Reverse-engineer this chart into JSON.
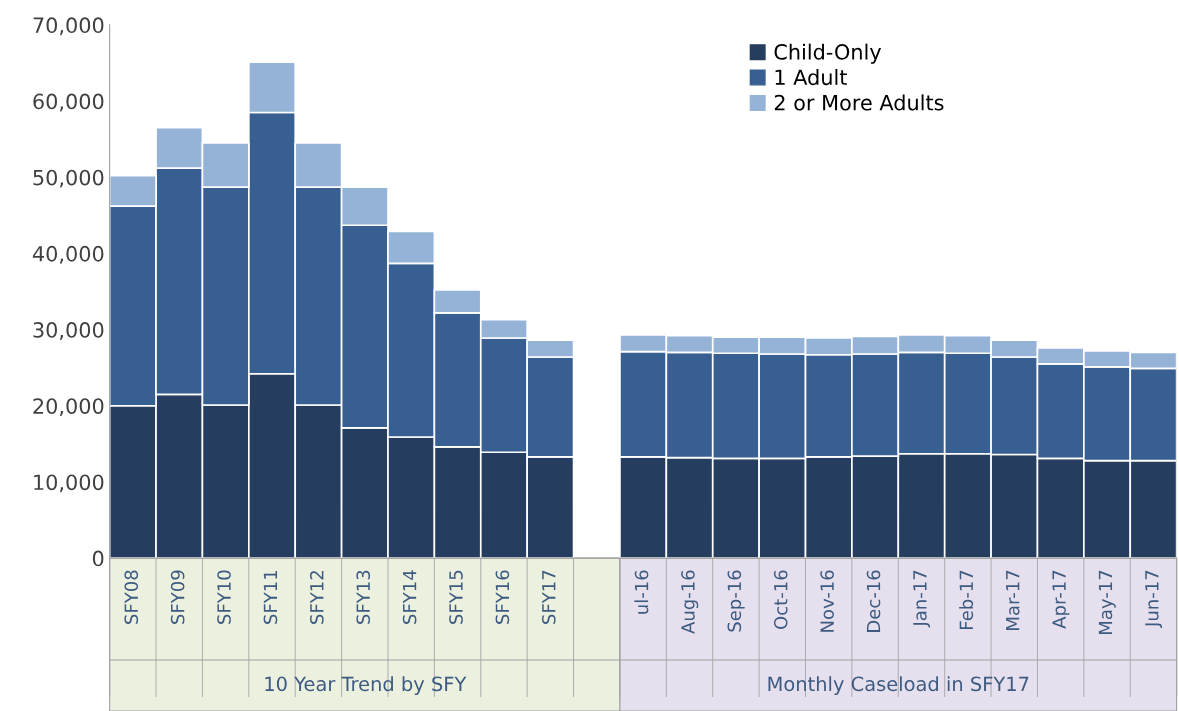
{
  "chart_data": {
    "type": "bar",
    "stacked": true,
    "categories": [
      "SFY08",
      "SFY09",
      "SFY10",
      "SFY11",
      "SFY12",
      "SFY13",
      "SFY14",
      "SFY15",
      "SFY16",
      "SFY17",
      null,
      "ul-16",
      "Aug-16",
      "Sep-16",
      "Oct-16",
      "Nov-16",
      "Dec-16",
      "Jan-17",
      "Feb-17",
      "Mar-17",
      "Apr-17",
      "May-17",
      "Jun-17"
    ],
    "series": [
      {
        "name": "Child-Only",
        "color": "#253d5e",
        "values": [
          20000,
          21500,
          20100,
          24200,
          20100,
          17100,
          15900,
          14600,
          13900,
          13300,
          null,
          13300,
          13200,
          13100,
          13100,
          13300,
          13400,
          13700,
          13700,
          13600,
          13100,
          12800,
          12800
        ]
      },
      {
        "name": "1 Adult",
        "color": "#375f91",
        "values": [
          26200,
          29700,
          28600,
          34300,
          28600,
          26600,
          22800,
          17600,
          15000,
          13100,
          null,
          13800,
          13800,
          13800,
          13700,
          13400,
          13400,
          13300,
          13200,
          12800,
          12400,
          12300,
          12100
        ]
      },
      {
        "name": "2 or More Adults",
        "color": "#95b3d7",
        "values": [
          4000,
          5300,
          5800,
          6600,
          5800,
          5000,
          4200,
          3000,
          2400,
          2200,
          null,
          2200,
          2200,
          2100,
          2200,
          2200,
          2300,
          2300,
          2300,
          2200,
          2100,
          2100,
          2100
        ]
      }
    ],
    "ylim": [
      0,
      70000
    ],
    "yticks": [
      {
        "value": 0,
        "label": "0"
      },
      {
        "value": 10000,
        "label": "10,000"
      },
      {
        "value": 20000,
        "label": "20,000"
      },
      {
        "value": 30000,
        "label": "30,000"
      },
      {
        "value": 40000,
        "label": "40,000"
      },
      {
        "value": 50000,
        "label": "50,000"
      },
      {
        "value": 60000,
        "label": "60,000"
      },
      {
        "value": 70000,
        "label": "70,000"
      }
    ],
    "legend": "top right",
    "annotations": [
      "10 Year Trend by SFY",
      "Monthly Caseload in SFY17"
    ]
  }
}
